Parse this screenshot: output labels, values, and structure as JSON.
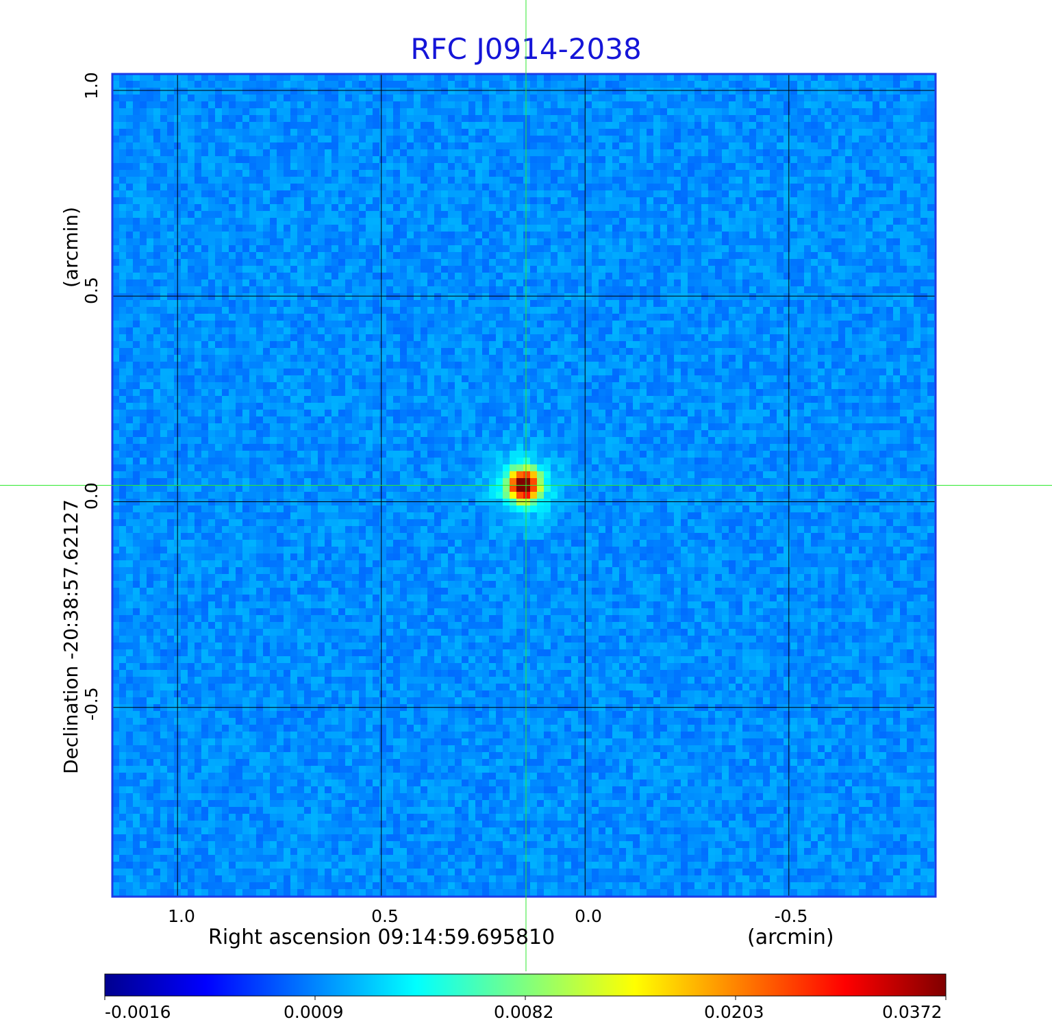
{
  "chart_data": {
    "type": "heatmap",
    "title": "RFC J0914-2038",
    "xlabel": "Right ascension  09:14:59.695810",
    "xlabel_unit": "(arcmin)",
    "ylabel": "Declination  -20:38:57.62127",
    "ylabel_unit": "(arcmin)",
    "x_ticks": [
      "1.0",
      "0.5",
      "0.0",
      "-0.5"
    ],
    "x_tick_values": [
      1.0,
      0.5,
      0.0,
      -0.5
    ],
    "y_ticks": [
      "1.0",
      "0.5",
      "0.0",
      "-0.5"
    ],
    "y_tick_values": [
      1.0,
      0.5,
      0.0,
      -0.5
    ],
    "xlim": [
      1.16,
      -0.86
    ],
    "ylim": [
      -0.96,
      1.04
    ],
    "grid": true,
    "colormap": "jet",
    "colorbar_ticks": [
      "-0.0016",
      "0.0009",
      "0.0082",
      "0.0203",
      "0.0372"
    ],
    "colorbar_range": [
      -0.0016,
      0.0372
    ],
    "source": {
      "x": 0.15,
      "y": 0.04
    },
    "crosshair": {
      "x": 0.145,
      "y": 0.04
    },
    "colors": {
      "title": "#1515d8",
      "frame": "#1c3be8",
      "crosshair": "#2ee82e",
      "grid": "#000000",
      "background_cell": "#1e74f0"
    }
  }
}
